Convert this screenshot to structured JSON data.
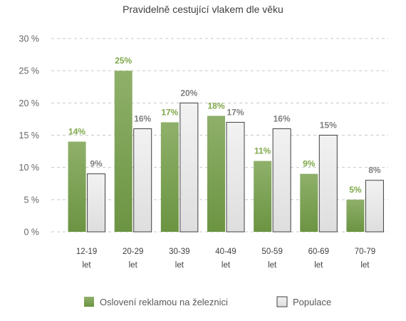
{
  "chart_data": {
    "type": "bar",
    "title": "Pravidelně cestující vlakem dle věku",
    "categories": [
      [
        "12-19",
        "let"
      ],
      [
        "20-29",
        "let"
      ],
      [
        "30-39",
        "let"
      ],
      [
        "40-49",
        "let"
      ],
      [
        "50-59",
        "let"
      ],
      [
        "60-69",
        "let"
      ],
      [
        "70-79",
        "let"
      ]
    ],
    "series": [
      {
        "name": "Oslovení reklamou na železnici",
        "values": [
          14,
          25,
          17,
          18,
          11,
          9,
          5
        ],
        "labels": [
          "14%",
          "25%",
          "17%",
          "18%",
          "11%",
          "9%",
          "5%"
        ],
        "color_top": "#8fb06a",
        "color_bottom": "#6b9442",
        "label_color": "#7fa84a"
      },
      {
        "name": "Populace",
        "values": [
          9,
          16,
          20,
          17,
          16,
          15,
          8
        ],
        "labels": [
          "9%",
          "16%",
          "20%",
          "17%",
          "16%",
          "15%",
          "8%"
        ],
        "color_top": "#f2f2f2",
        "color_bottom": "#dedede",
        "label_color": "#7f7f7f"
      }
    ],
    "y_ticks": [
      "0 %",
      "5 %",
      "10 %",
      "15 %",
      "20 %",
      "25 %",
      "30 %"
    ],
    "ylim": [
      0,
      30
    ],
    "grid": true,
    "legend_position": "bottom"
  }
}
